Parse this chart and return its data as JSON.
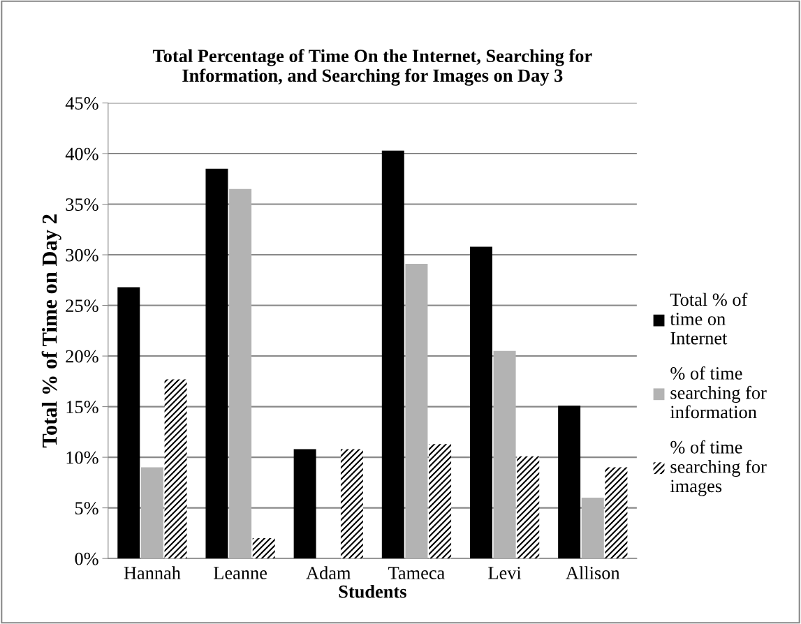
{
  "chart_data": {
    "type": "bar",
    "title": "Total Percentage of Time On the Internet, Searching for\nInformation, and Searching for Images on Day 3",
    "xlabel": "Students",
    "ylabel": "Total % of Time on Day 2",
    "categories": [
      "Hannah",
      "Leanne",
      "Adam",
      "Tameca",
      "Levi",
      "Allison"
    ],
    "series": [
      {
        "name": "Total % of\ntime on\nInternet",
        "color": "#000000",
        "values": [
          26.8,
          38.5,
          10.8,
          40.3,
          30.8,
          15.1
        ]
      },
      {
        "name": "% of time\nsearching for\ninformation",
        "color": "#b3b3b3",
        "values": [
          9.0,
          36.5,
          0,
          29.1,
          20.5,
          6.0
        ]
      },
      {
        "name": "% of time\nsearching for\nimages",
        "color": "#000000",
        "values": [
          17.7,
          2.0,
          10.8,
          11.3,
          10.1,
          9.0
        ]
      }
    ],
    "ylim": [
      0,
      45
    ],
    "yticks": [
      {
        "value": 0,
        "label": "0%"
      },
      {
        "value": 5,
        "label": "5%"
      },
      {
        "value": 10,
        "label": "10%"
      },
      {
        "value": 15,
        "label": "15%"
      },
      {
        "value": 20,
        "label": "20%"
      },
      {
        "value": 25,
        "label": "25%"
      },
      {
        "value": 30,
        "label": "30%"
      },
      {
        "value": 35,
        "label": "35%"
      },
      {
        "value": 40,
        "label": "40%"
      },
      {
        "value": 45,
        "label": "45%"
      }
    ],
    "grid": "y",
    "legend": "right"
  }
}
